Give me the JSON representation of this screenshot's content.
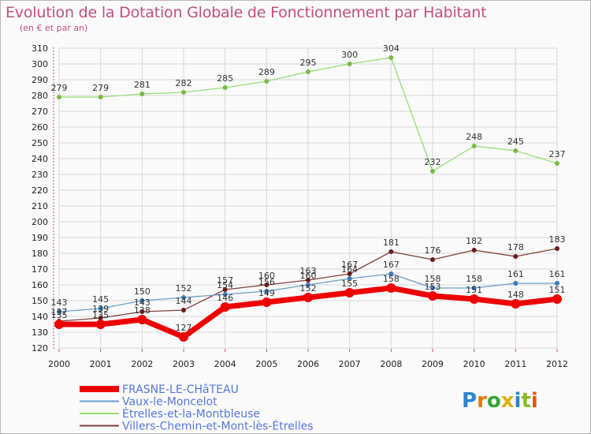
{
  "header": {
    "title": "Evolution de la Dotation Globale de Fonctionnement par Habitant",
    "subtitle": "(en € et par an)"
  },
  "logo": {
    "text": "Proxiti"
  },
  "colors": {
    "title": "#c05080",
    "grid": "#d8d8d8",
    "axis_ticks": "#c05080"
  },
  "chart_data": {
    "type": "line",
    "title": "Evolution de la Dotation Globale de Fonctionnement par Habitant",
    "subtitle": "(en € et par an)",
    "xlabel": "",
    "ylabel": "",
    "x": [
      "2000",
      "2001",
      "2002",
      "2003",
      "2004",
      "2005",
      "2006",
      "2007",
      "2008",
      "2009",
      "2010",
      "2011",
      "2012"
    ],
    "ylim": [
      120,
      310
    ],
    "yticks": [
      120,
      130,
      140,
      150,
      160,
      170,
      180,
      190,
      200,
      210,
      220,
      230,
      240,
      250,
      260,
      270,
      280,
      290,
      300,
      310
    ],
    "grid": true,
    "legend_position": "bottom",
    "series": [
      {
        "name": "Étrelles-et-la-Montbleuse",
        "color": "#99dd77",
        "marker": "#77bb44",
        "width": 1.3,
        "values": [
          279,
          279,
          281,
          282,
          285,
          289,
          295,
          300,
          304,
          232,
          248,
          245,
          237
        ],
        "labels": [
          "279",
          "279",
          "281",
          "282",
          "285",
          "289",
          "295",
          "300",
          "304",
          "232",
          "248",
          "245",
          "237"
        ]
      },
      {
        "name": "Villers-Chemin-et-Mont-lès-Étrelles",
        "color": "#804040",
        "marker": "#6a1a1a",
        "width": 1.3,
        "values": [
          137,
          139,
          143,
          144,
          157,
          160,
          163,
          167,
          181,
          176,
          182,
          178,
          183
        ],
        "labels": [
          "137",
          "139",
          "143",
          "144",
          "157",
          "160",
          "163",
          "167",
          "181",
          "176",
          "182",
          "178",
          "183"
        ]
      },
      {
        "name": "Vaux-le-Moncelot",
        "color": "#6aa0cc",
        "marker": "#3a7ab8",
        "width": 1.3,
        "values": [
          143,
          145,
          150,
          152,
          154,
          156,
          160,
          164,
          167,
          158,
          158,
          161,
          161
        ],
        "labels": [
          "143",
          "145",
          "150",
          "152",
          "154",
          "156",
          "160",
          "164",
          "167",
          "158",
          "158",
          "161",
          "161"
        ]
      },
      {
        "name": "FRASNE-LE-CHâTEAU",
        "color": "#ee0000",
        "marker": "#ee0000",
        "width": 7,
        "values": [
          135,
          135,
          138,
          127,
          146,
          149,
          152,
          155,
          158,
          153,
          151,
          148,
          151
        ],
        "labels": [
          "135",
          "135",
          "138",
          "127",
          "146",
          "149",
          "152",
          "155",
          "158",
          "153",
          "151",
          "148",
          "151"
        ]
      }
    ],
    "legend": [
      {
        "name": "FRASNE-LE-CHâTEAU",
        "color": "#ee0000",
        "text_color": "#5577dd"
      },
      {
        "name": "Vaux-le-Moncelot",
        "color": "#6aa0cc",
        "text_color": "#5577dd"
      },
      {
        "name": "Étrelles-et-la-Montbleuse",
        "color": "#99dd77",
        "text_color": "#5577dd"
      },
      {
        "name": "Villers-Chemin-et-Mont-lès-Étrelles",
        "color": "#804040",
        "text_color": "#5577dd"
      }
    ]
  }
}
